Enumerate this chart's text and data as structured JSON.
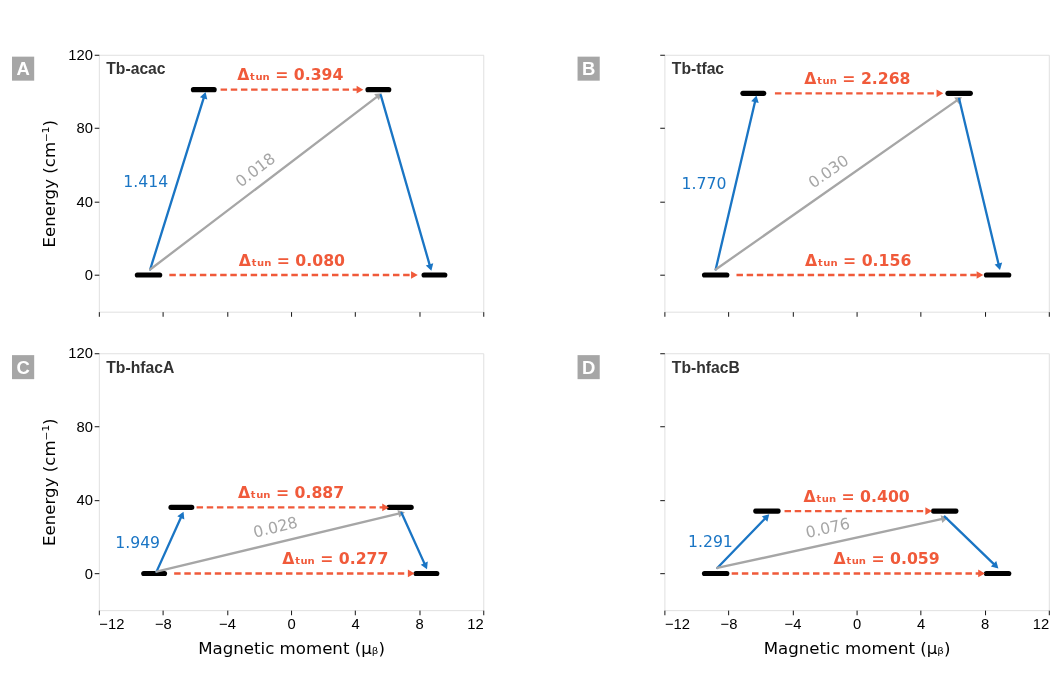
{
  "chart_data": [
    {
      "type": "line",
      "title": "Tb-acac",
      "ylabel": "Eenergy (cm⁻¹)",
      "xlim": [
        -12,
        12
      ],
      "ylim": [
        -20,
        120
      ],
      "xticks": [
        -12,
        -8,
        -4,
        0,
        4,
        8,
        12
      ],
      "yticks": [
        0,
        40,
        80,
        120
      ],
      "tick_labels": "y",
      "annotations": [
        "A"
      ],
      "series": [
        {
          "color": "#000000",
          "x": [
            -9.6,
            -8.2
          ],
          "values": [
            0,
            0
          ]
        },
        {
          "color": "#000000",
          "x": [
            -6.1,
            -4.8
          ],
          "values": [
            101,
            101
          ]
        },
        {
          "color": "#000000",
          "x": [
            4.8,
            6.1
          ],
          "values": [
            101,
            101
          ]
        },
        {
          "color": "#000000",
          "x": [
            8.3,
            9.6
          ],
          "values": [
            0,
            0
          ]
        },
        {
          "name": "1.414",
          "color": "#1a75c4",
          "marker": "triangle",
          "x": [
            -8.8,
            -5.4
          ],
          "values": [
            3,
            98
          ]
        },
        {
          "name": "0.018",
          "color": "#a6a6a6",
          "marker": "triangle",
          "x": [
            -8.8,
            5.5
          ],
          "values": [
            3,
            98
          ]
        },
        {
          "color": "#1a75c4",
          "marker": "triangle",
          "x": [
            5.6,
            8.7
          ],
          "values": [
            98,
            4
          ]
        },
        {
          "name": "Δₜᵤₙ = 0.394",
          "color": "#f05a3a",
          "marker": "triangle",
          "line_style": "dashed",
          "x": [
            -4.4,
            4.3
          ],
          "values": [
            101,
            101
          ]
        },
        {
          "name": "Δₜᵤₙ = 0.080",
          "color": "#f05a3a",
          "marker": "triangle",
          "line_style": "dashed",
          "x": [
            -7.6,
            7.7
          ],
          "values": [
            0,
            0
          ]
        }
      ]
    },
    {
      "type": "line",
      "title": "Tb-tfac",
      "xlim": [
        -12,
        12
      ],
      "ylim": [
        -20,
        120
      ],
      "xticks": [
        -12,
        -8,
        -4,
        0,
        4,
        8,
        12
      ],
      "yticks": [
        0,
        40,
        80,
        120
      ],
      "tick_labels": false,
      "annotations": [
        "B"
      ],
      "series": [
        {
          "color": "#000000",
          "x": [
            -9.5,
            -8.1
          ],
          "values": [
            0,
            0
          ]
        },
        {
          "color": "#000000",
          "x": [
            -7.1,
            -5.8
          ],
          "values": [
            99,
            99
          ]
        },
        {
          "color": "#000000",
          "x": [
            5.7,
            7.1
          ],
          "values": [
            99,
            99
          ]
        },
        {
          "color": "#000000",
          "x": [
            8.1,
            9.5
          ],
          "values": [
            0,
            0
          ]
        },
        {
          "name": "1.770",
          "color": "#1a75c4",
          "marker": "triangle",
          "x": [
            -8.8,
            -6.3
          ],
          "values": [
            3,
            96
          ]
        },
        {
          "name": "0.030",
          "color": "#a6a6a6",
          "marker": "triangle",
          "x": [
            -8.8,
            6.4
          ],
          "values": [
            3,
            96
          ]
        },
        {
          "color": "#1a75c4",
          "marker": "triangle",
          "x": [
            6.4,
            8.9
          ],
          "values": [
            96,
            4.5
          ]
        },
        {
          "name": "Δₜᵤₙ = 2.268",
          "color": "#f05a3a",
          "marker": "triangle",
          "line_style": "dashed",
          "x": [
            -5.1,
            5.2
          ],
          "values": [
            99,
            99
          ]
        },
        {
          "name": "Δₜᵤₙ = 0.156",
          "color": "#f05a3a",
          "marker": "triangle",
          "line_style": "dashed",
          "x": [
            -7.5,
            7.7
          ],
          "values": [
            0,
            0
          ]
        }
      ]
    },
    {
      "type": "line",
      "title": "Tb-hfacA",
      "xlabel": "Magnetic moment (μᵦ)",
      "ylabel": "Eenergy (cm⁻¹)",
      "xlim": [
        -12,
        12
      ],
      "ylim": [
        -20,
        120
      ],
      "xticks": [
        -12,
        -8,
        -4,
        0,
        4,
        8,
        12
      ],
      "yticks": [
        0,
        40,
        80,
        120
      ],
      "annotations": [
        "C"
      ],
      "series": [
        {
          "color": "#000000",
          "x": [
            -9.2,
            -7.9
          ],
          "values": [
            0,
            0
          ]
        },
        {
          "color": "#000000",
          "x": [
            -7.5,
            -6.2
          ],
          "values": [
            36,
            36
          ]
        },
        {
          "color": "#000000",
          "x": [
            6.1,
            7.5
          ],
          "values": [
            36,
            36
          ]
        },
        {
          "color": "#000000",
          "x": [
            7.8,
            9.1
          ],
          "values": [
            0,
            0
          ]
        },
        {
          "name": "1.949",
          "color": "#1a75c4",
          "marker": "triangle",
          "x": [
            -8.4,
            -6.8
          ],
          "values": [
            1,
            32
          ]
        },
        {
          "name": "0.028",
          "color": "#a6a6a6",
          "marker": "triangle",
          "x": [
            -8.4,
            6.9
          ],
          "values": [
            1,
            33
          ]
        },
        {
          "color": "#1a75c4",
          "marker": "triangle",
          "x": [
            6.9,
            8.4
          ],
          "values": [
            33,
            4
          ]
        },
        {
          "name": "Δₜᵤₙ = 0.887",
          "color": "#f05a3a",
          "marker": "triangle",
          "line_style": "dashed",
          "x": [
            -5.9,
            5.9
          ],
          "values": [
            36,
            36
          ]
        },
        {
          "name": "Δₜᵤₙ = 0.277",
          "color": "#f05a3a",
          "marker": "triangle",
          "line_style": "dashed",
          "x": [
            -7.3,
            7.5
          ],
          "values": [
            0,
            0
          ]
        }
      ]
    },
    {
      "type": "line",
      "title": "Tb-hfacB",
      "xlabel": "Magnetic moment (μᵦ)",
      "xlim": [
        -12,
        12
      ],
      "ylim": [
        -20,
        120
      ],
      "xticks": [
        -12,
        -8,
        -4,
        0,
        4,
        8,
        12
      ],
      "yticks": [
        0,
        40,
        80,
        120
      ],
      "tick_labels": "x",
      "annotations": [
        "D"
      ],
      "series": [
        {
          "color": "#000000",
          "x": [
            -9.5,
            -8.1
          ],
          "values": [
            0,
            0
          ]
        },
        {
          "color": "#000000",
          "x": [
            -6.3,
            -4.9
          ],
          "values": [
            34,
            34
          ]
        },
        {
          "color": "#000000",
          "x": [
            4.8,
            6.2
          ],
          "values": [
            34,
            34
          ]
        },
        {
          "color": "#000000",
          "x": [
            8.1,
            9.5
          ],
          "values": [
            0,
            0
          ]
        },
        {
          "name": "1.291",
          "color": "#1a75c4",
          "marker": "triangle",
          "x": [
            -8.7,
            -5.6
          ],
          "values": [
            3,
            31
          ]
        },
        {
          "name": "0.076",
          "color": "#a6a6a6",
          "marker": "triangle",
          "x": [
            -8.7,
            5.5
          ],
          "values": [
            3,
            30
          ]
        },
        {
          "color": "#1a75c4",
          "marker": "triangle",
          "x": [
            5.5,
            8.7
          ],
          "values": [
            31,
            4
          ]
        },
        {
          "name": "Δₜᵤₙ = 0.400",
          "color": "#f05a3a",
          "marker": "triangle",
          "line_style": "dashed",
          "x": [
            -4.5,
            4.5
          ],
          "values": [
            34,
            34
          ]
        },
        {
          "name": "Δₜᵤₙ = 0.059",
          "color": "#f05a3a",
          "marker": "triangle",
          "line_style": "dashed",
          "x": [
            -7.8,
            7.8
          ],
          "values": [
            0,
            0
          ]
        }
      ]
    }
  ]
}
